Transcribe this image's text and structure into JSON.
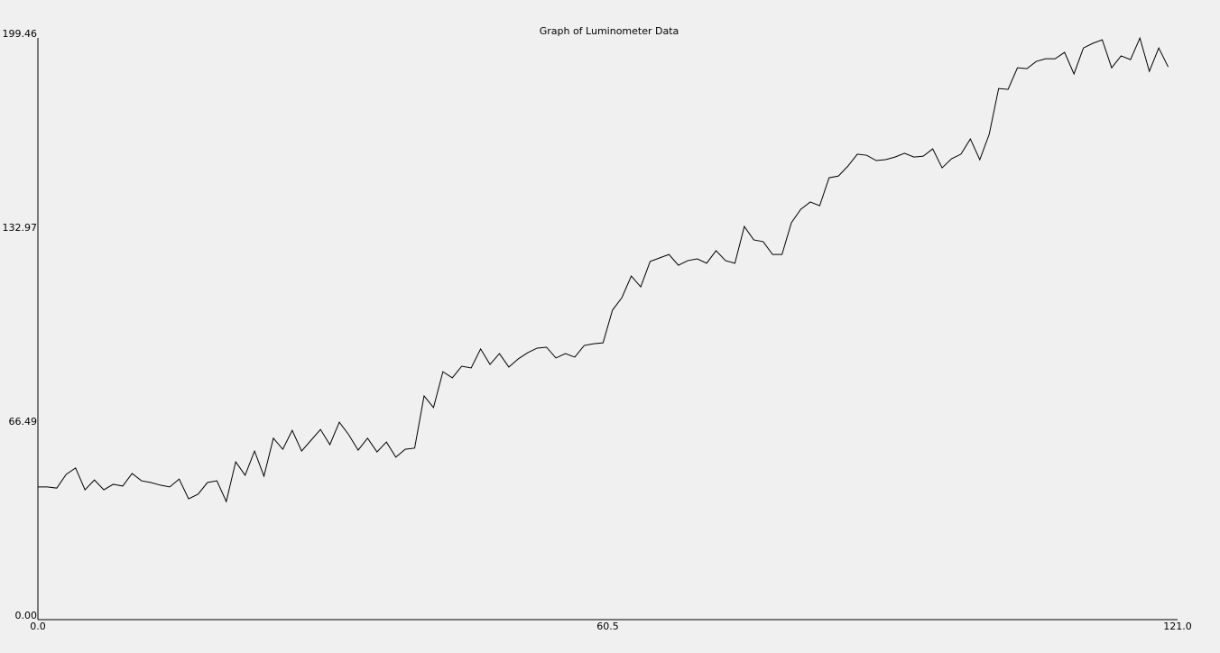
{
  "chart_data": {
    "type": "line",
    "title": "Graph of Luminometer Data",
    "color": "#000000",
    "x": [
      0,
      1,
      2,
      3,
      4,
      5,
      6,
      7,
      8,
      9,
      10,
      11,
      12,
      13,
      14,
      15,
      16,
      17,
      18,
      19,
      20,
      21,
      22,
      23,
      24,
      25,
      26,
      27,
      28,
      29,
      30,
      31,
      32,
      33,
      34,
      35,
      36,
      37,
      38,
      39,
      40,
      41,
      42,
      43,
      44,
      45,
      46,
      47,
      48,
      49,
      50,
      51,
      52,
      53,
      54,
      55,
      56,
      57,
      58,
      59,
      60,
      61,
      62,
      63,
      64,
      65,
      66,
      67,
      68,
      69,
      70,
      71,
      72,
      73,
      74,
      75,
      76,
      77,
      78,
      79,
      80,
      81,
      82,
      83,
      84,
      85,
      86,
      87,
      88,
      89,
      90,
      91,
      92,
      93,
      94,
      95,
      96,
      97,
      98,
      99,
      100,
      101,
      102,
      103,
      104,
      105,
      106,
      107,
      108,
      109,
      110,
      111,
      112,
      113,
      114,
      115,
      116,
      117,
      118,
      119,
      120
    ],
    "values": [
      45.5,
      45.5,
      45.1,
      49.8,
      52,
      44.5,
      47.9,
      44.5,
      46.4,
      45.8,
      50.1,
      47.6,
      47,
      46.1,
      45.5,
      48.2,
      41.4,
      43,
      47,
      47.6,
      40.5,
      54.1,
      49.5,
      57.8,
      49.2,
      62.2,
      58.4,
      64.9,
      57.8,
      61.5,
      65.2,
      60,
      67.7,
      63.4,
      58.1,
      62.2,
      57.5,
      60.9,
      55.7,
      58.4,
      58.8,
      76.7,
      72.7,
      85,
      82.9,
      86.9,
      86.3,
      92.8,
      87.5,
      91.2,
      86.6,
      89.4,
      91.5,
      93.1,
      93.4,
      89.7,
      91.2,
      90,
      94,
      94.6,
      94.9,
      106.1,
      110.4,
      117.8,
      114.1,
      122.8,
      124,
      125.2,
      121.5,
      123.1,
      123.7,
      122.2,
      126.5,
      123.1,
      122.2,
      134.8,
      130.2,
      129.6,
      125.2,
      125.2,
      136.1,
      140.7,
      143.2,
      141.9,
      151.5,
      152.1,
      155.5,
      159.6,
      159.2,
      157.4,
      157.7,
      158.6,
      159.9,
      158.6,
      158.9,
      161.4,
      154.9,
      158,
      159.6,
      164.8,
      157.7,
      166.4,
      182.1,
      181.8,
      189.2,
      188.9,
      191.4,
      192.3,
      192.3,
      194.5,
      187.1,
      196,
      197.6,
      198.8,
      189.2,
      193.3,
      192,
      199.4,
      188,
      196,
      189.5
    ],
    "xlim": [
      0,
      121
    ],
    "ylim": [
      0,
      199.46
    ],
    "xticks": [
      {
        "value": 0,
        "label": "0.0"
      },
      {
        "value": 60.5,
        "label": "60.5"
      },
      {
        "value": 121,
        "label": "121.0"
      }
    ],
    "yticks": [
      {
        "value": 0,
        "label": "0.00"
      },
      66.49,
      132.97,
      199.46
    ]
  }
}
